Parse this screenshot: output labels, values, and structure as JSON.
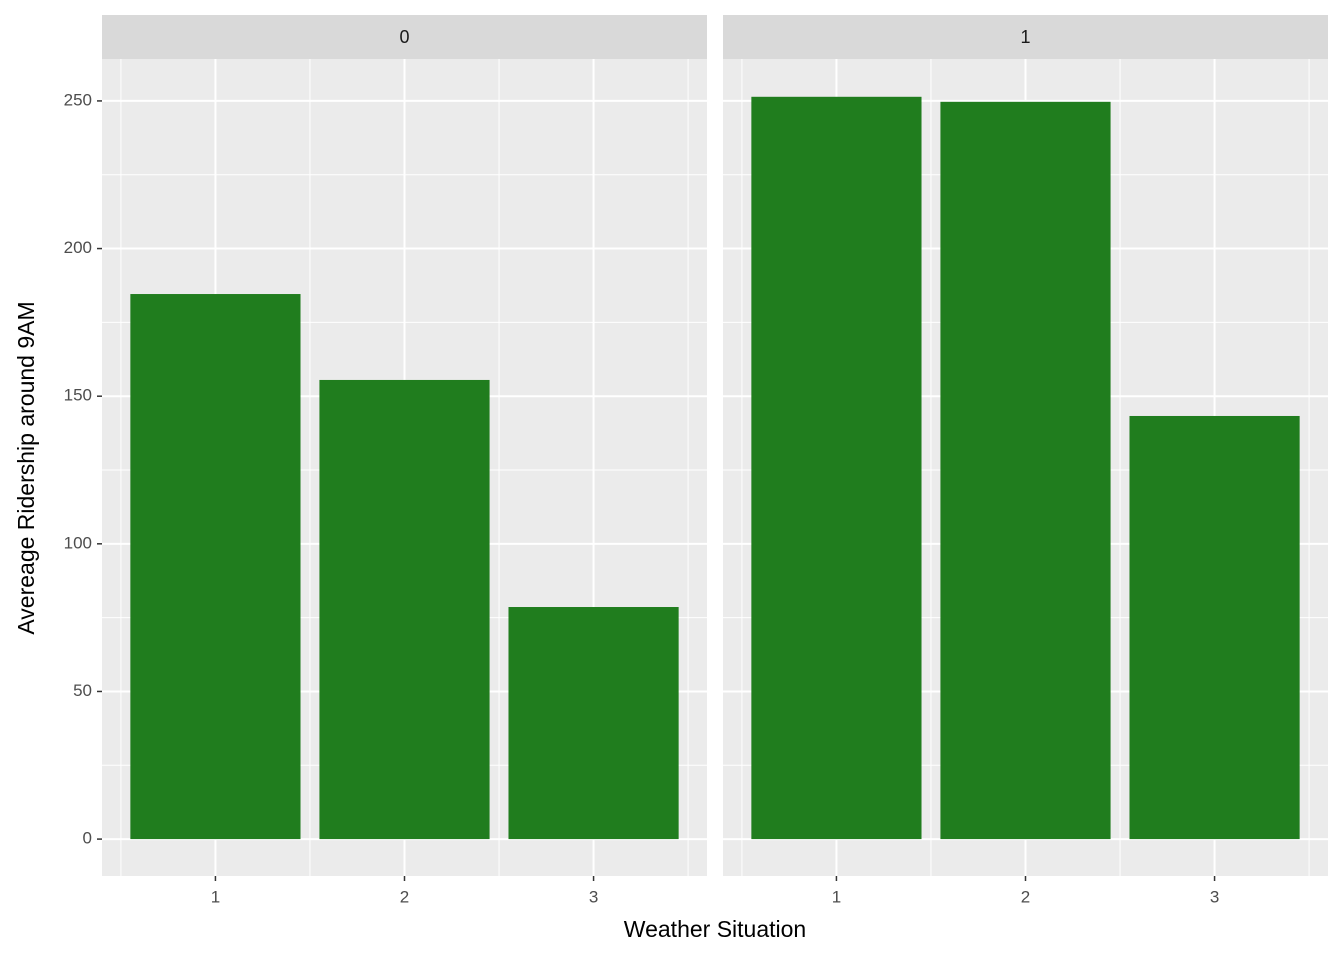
{
  "x_label": "Weather Situation",
  "y_label": "Avereage Ridership around 9AM",
  "ylim": [
    -12.5,
    264.2
  ],
  "yticks": [
    0,
    50,
    100,
    150,
    200,
    250
  ],
  "chart_data": [
    {
      "type": "bar",
      "title": "0",
      "categories": [
        "1",
        "2",
        "3"
      ],
      "values": [
        184.6,
        155.5,
        78.6
      ],
      "color": "#207d1e",
      "grid": true
    },
    {
      "type": "bar",
      "title": "1",
      "categories": [
        "1",
        "2",
        "3"
      ],
      "values": [
        251.4,
        249.7,
        143.3
      ],
      "color": "#207d1e",
      "grid": true
    }
  ]
}
